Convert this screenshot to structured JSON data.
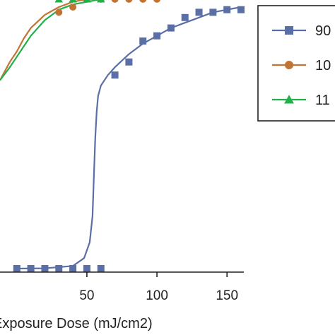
{
  "chart_data": {
    "type": "line",
    "xlabel": "Exposure Dose (mJ/cm2)",
    "ylabel": "",
    "title": "",
    "xlim": [
      -12,
      162
    ],
    "x_ticks": [
      50,
      100,
      150
    ],
    "x_tick_labels": [
      "50",
      "100",
      "150"
    ],
    "legend_placement": "top-right",
    "series": [
      {
        "name": "90",
        "color": "#5a6fa6",
        "marker": "square",
        "points": [
          [
            0,
            0.0
          ],
          [
            10,
            0.0
          ],
          [
            20,
            0.0
          ],
          [
            30,
            0.0
          ],
          [
            40,
            0.0
          ],
          [
            50,
            0.0
          ],
          [
            60,
            0.0
          ],
          [
            70,
            0.74
          ],
          [
            80,
            0.79
          ],
          [
            90,
            0.87
          ],
          [
            100,
            0.89
          ],
          [
            110,
            0.92
          ],
          [
            120,
            0.96
          ],
          [
            130,
            0.98
          ],
          [
            140,
            0.98
          ],
          [
            150,
            0.99
          ],
          [
            160,
            0.99
          ]
        ],
        "curve_x": [
          0,
          20,
          40,
          48,
          52,
          54,
          55,
          56,
          57,
          58,
          60,
          65,
          70,
          80,
          90,
          100,
          110,
          120,
          130,
          140,
          150,
          160
        ],
        "curve_y": [
          0.0,
          0.001,
          0.01,
          0.04,
          0.1,
          0.2,
          0.35,
          0.5,
          0.6,
          0.66,
          0.7,
          0.74,
          0.77,
          0.82,
          0.86,
          0.89,
          0.92,
          0.94,
          0.96,
          0.98,
          0.99,
          1.0
        ]
      },
      {
        "name": "10",
        "color": "#c27434",
        "marker": "circle",
        "points": [
          [
            30,
            0.98
          ],
          [
            40,
            1.0
          ],
          [
            50,
            1.03
          ],
          [
            60,
            1.03
          ],
          [
            70,
            1.03
          ],
          [
            80,
            1.03
          ],
          [
            90,
            1.03
          ],
          [
            100,
            1.03
          ]
        ],
        "curve_x": [
          -12,
          -5,
          0,
          5,
          10,
          20,
          30,
          40,
          50,
          60,
          70,
          80,
          90,
          100
        ],
        "curve_y": [
          0.72,
          0.79,
          0.83,
          0.88,
          0.92,
          0.97,
          1.0,
          1.02,
          1.03,
          1.03,
          1.03,
          1.03,
          1.03,
          1.03
        ]
      },
      {
        "name": "11",
        "color": "#22b04a",
        "marker": "triangle",
        "points": [
          [
            30,
            1.03
          ],
          [
            40,
            1.03
          ],
          [
            50,
            1.03
          ],
          [
            60,
            1.03
          ]
        ],
        "curve_x": [
          -12,
          -5,
          0,
          5,
          10,
          20,
          30,
          40,
          50,
          60
        ],
        "curve_y": [
          0.72,
          0.77,
          0.81,
          0.85,
          0.89,
          0.95,
          0.99,
          1.01,
          1.02,
          1.03
        ]
      }
    ]
  }
}
